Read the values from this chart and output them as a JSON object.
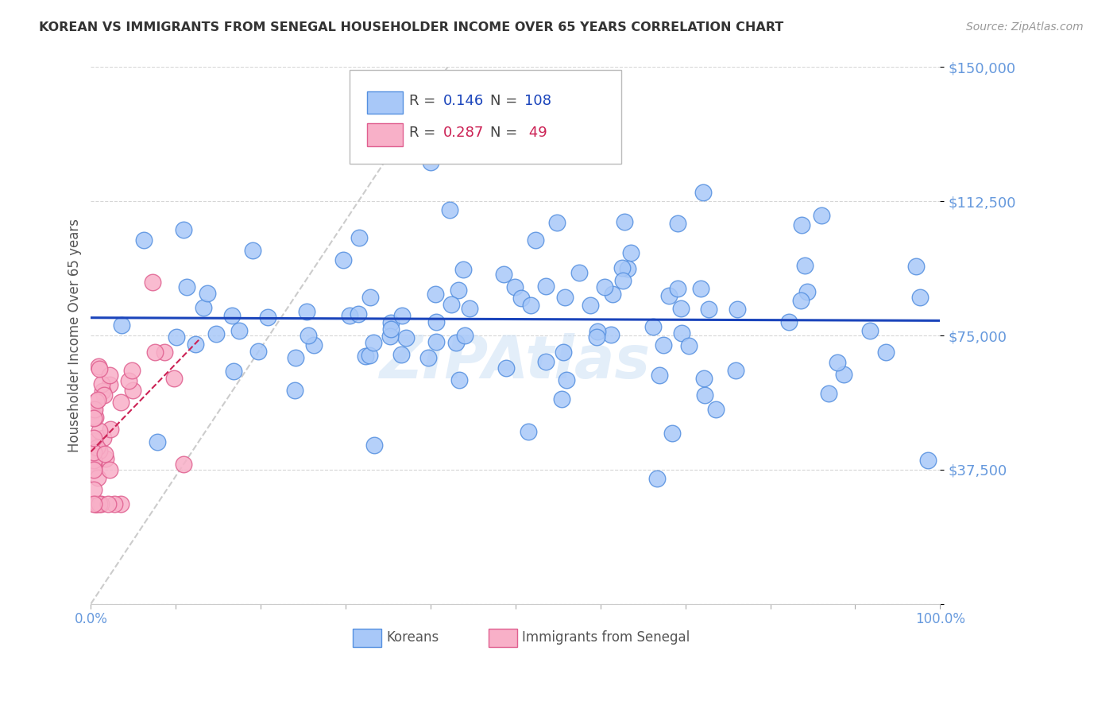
{
  "title": "KOREAN VS IMMIGRANTS FROM SENEGAL HOUSEHOLDER INCOME OVER 65 YEARS CORRELATION CHART",
  "source": "Source: ZipAtlas.com",
  "ylabel": "Householder Income Over 65 years",
  "xlim": [
    0,
    1.0
  ],
  "ylim": [
    0,
    150000
  ],
  "yticks": [
    0,
    37500,
    75000,
    112500,
    150000
  ],
  "korean_R": 0.146,
  "korean_N": 108,
  "senegal_R": 0.287,
  "senegal_N": 49,
  "korean_color": "#a8c8f8",
  "korean_edge_color": "#5590e0",
  "senegal_color": "#f8b0c8",
  "senegal_edge_color": "#e06090",
  "trendline_korean_color": "#1a44bb",
  "trendline_senegal_color": "#cc2255",
  "diagonal_color": "#cccccc",
  "watermark": "ZIPAtlas",
  "background_color": "#ffffff",
  "grid_color": "#cccccc",
  "axis_label_color": "#6699dd",
  "title_color": "#333333"
}
